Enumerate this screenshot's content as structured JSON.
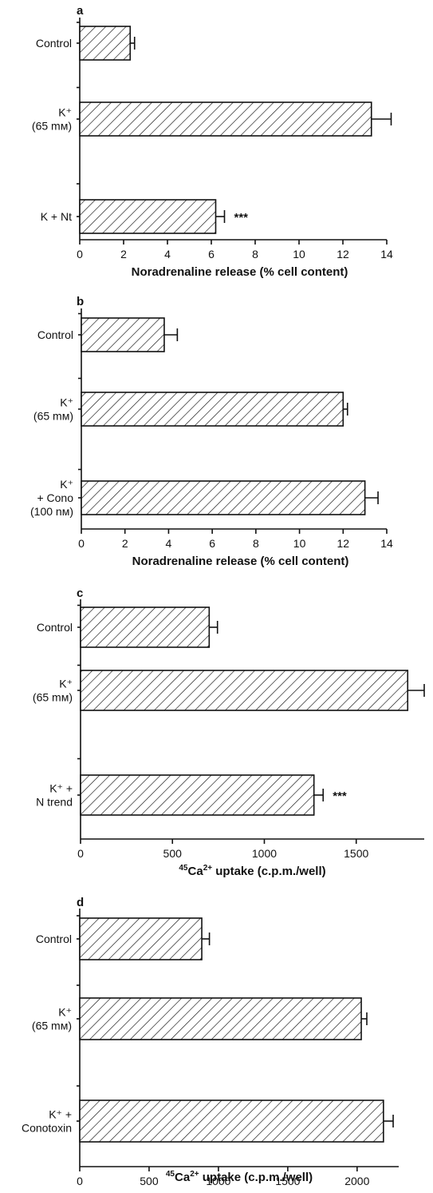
{
  "chart_data": [
    {
      "type": "bar",
      "orientation": "horizontal",
      "panel_label": "a",
      "categories": [
        [
          "Control"
        ],
        [
          "K⁺",
          "(65 mᴍ)"
        ],
        [
          "K + Nt"
        ]
      ],
      "values": [
        2.3,
        13.3,
        6.2
      ],
      "errors": [
        0.2,
        0.9,
        0.4
      ],
      "annotations": [
        "",
        "",
        "***"
      ],
      "xlabel": "Noradrenaline release (% cell content)",
      "xlim": [
        0,
        14
      ],
      "xticks": [
        0,
        2,
        4,
        6,
        8,
        10,
        12,
        14
      ]
    },
    {
      "type": "bar",
      "orientation": "horizontal",
      "panel_label": "b",
      "categories": [
        [
          "Control"
        ],
        [
          "K⁺",
          "(65 mᴍ)"
        ],
        [
          "K⁺",
          "+ Cono",
          "(100 nᴍ)"
        ]
      ],
      "values": [
        3.8,
        12.0,
        13.0
      ],
      "errors": [
        0.6,
        0.2,
        0.6
      ],
      "annotations": [
        "",
        "",
        ""
      ],
      "xlabel": "Noradrenaline release (% cell content)",
      "xlim": [
        0,
        14
      ],
      "xticks": [
        0,
        2,
        4,
        6,
        8,
        10,
        12,
        14
      ]
    },
    {
      "type": "bar",
      "orientation": "horizontal",
      "panel_label": "c",
      "categories": [
        [
          "Control"
        ],
        [
          "K⁺",
          "(65 mᴍ)"
        ],
        [
          "K⁺ +",
          "N trend"
        ]
      ],
      "values": [
        700,
        1780,
        1270
      ],
      "errors": [
        45,
        90,
        50
      ],
      "annotations": [
        "",
        "",
        "***"
      ],
      "xlabel_sup": "45",
      "xlabel_base": "Ca",
      "xlabel_charge": "2+",
      "xlabel_rest": " uptake (c.p.m./well)",
      "xlim": [
        0,
        1870
      ],
      "xticks": [
        0,
        500,
        1000,
        1500
      ]
    },
    {
      "type": "bar",
      "orientation": "horizontal",
      "panel_label": "d",
      "categories": [
        [
          "Control"
        ],
        [
          "K⁺",
          "(65 mᴍ)"
        ],
        [
          "K⁺ +",
          "Conotoxin"
        ]
      ],
      "values": [
        880,
        2030,
        2190
      ],
      "errors": [
        55,
        40,
        70
      ],
      "annotations": [
        "",
        "",
        ""
      ],
      "xlabel_sup": "45",
      "xlabel_base": "Ca",
      "xlabel_charge": "2+",
      "xlabel_rest": " uptake (c.p.m./well)",
      "xlim": [
        0,
        2300
      ],
      "xticks": [
        0,
        500,
        1000,
        1500,
        2000
      ]
    }
  ]
}
